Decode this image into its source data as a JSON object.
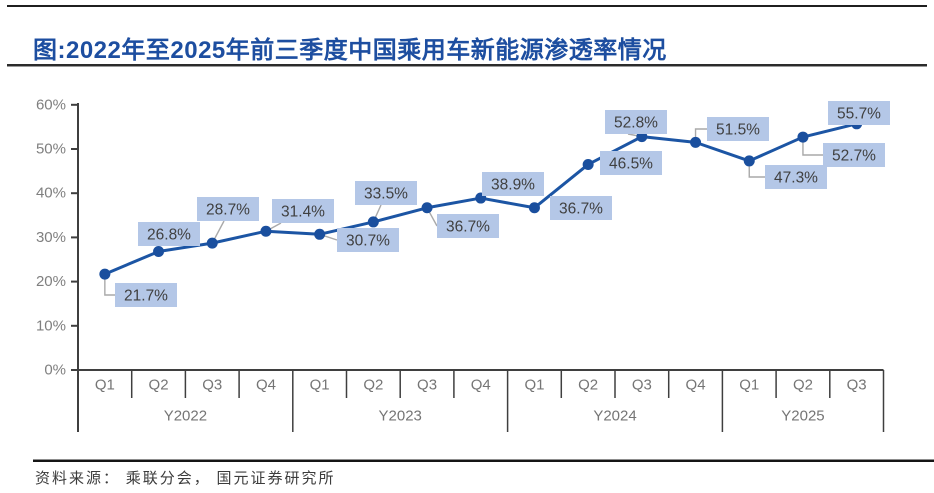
{
  "header": {
    "title": "图:2022年至2025年前三季度中国乘用车新能源渗透率情况"
  },
  "footer": {
    "source": "资料来源： 乘联分会， 国元证券研究所"
  },
  "chart_data": {
    "type": "line",
    "title": "2022年至2025年前三季度中国乘用车新能源渗透率情况",
    "xlabel": "",
    "ylabel": "",
    "ylim": [
      0,
      60
    ],
    "y_ticks": [
      "0%",
      "10%",
      "20%",
      "30%",
      "40%",
      "50%",
      "60%"
    ],
    "grid": false,
    "legend_position": "none",
    "categories": [
      "Q1",
      "Q2",
      "Q3",
      "Q4",
      "Q1",
      "Q2",
      "Q3",
      "Q4",
      "Q1",
      "Q2",
      "Q3",
      "Q4",
      "Q1",
      "Q2",
      "Q3"
    ],
    "year_groups": [
      {
        "label": "Y2022",
        "span": 4
      },
      {
        "label": "Y2023",
        "span": 4
      },
      {
        "label": "Y2024",
        "span": 4
      },
      {
        "label": "Y2025",
        "span": 3
      }
    ],
    "series": [
      {
        "name": "中国乘用车新能源渗透率",
        "values": [
          21.7,
          26.8,
          28.7,
          31.4,
          30.7,
          33.5,
          36.7,
          38.9,
          36.7,
          46.5,
          52.8,
          51.5,
          47.3,
          52.7,
          55.7
        ],
        "labels": [
          "21.7%",
          "26.8%",
          "28.7%",
          "31.4%",
          "30.7%",
          "33.5%",
          "36.7%",
          "38.9%",
          "36.7%",
          "46.5%",
          "52.8%",
          "51.5%",
          "47.3%",
          "52.7%",
          "55.7%"
        ]
      }
    ],
    "colors": {
      "line": "#1c55a4",
      "marker": "#1a4f9e",
      "label_bg": "#b4c7e7",
      "label_text": "#404040",
      "leader": "#a9a9a9",
      "axis": "#3f3f3f",
      "tick_text": "#7f7f7f",
      "title_text": "#1d4ea0"
    }
  }
}
